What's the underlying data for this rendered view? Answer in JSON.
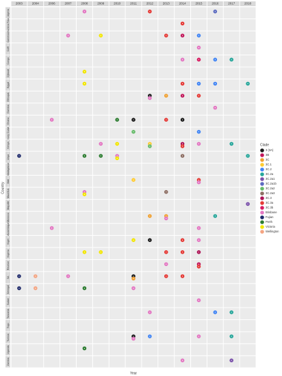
{
  "chart_data": {
    "type": "facet-dot",
    "x_label": "Year",
    "y_label": "Country",
    "legend_title": "Clade",
    "years": [
      "2003",
      "2004",
      "2006",
      "2007",
      "2008",
      "2009",
      "2010",
      "2011",
      "2012",
      "2013",
      "2014",
      "2015",
      "2016",
      "2017",
      "2018"
    ],
    "countries": [
      "Algeria",
      "Burkina Faso",
      "Cameroon",
      "CAR",
      "Congo",
      "Djibouti",
      "Egypt",
      "Ethiopia",
      "Gambia",
      "Ghana",
      "Ivory Coast",
      "Kenya",
      "Libya",
      "Madagascar",
      "Mali",
      "Mauritius",
      "Mayotte",
      "Morocco",
      "Mozambique",
      "Niger",
      "Nigeria",
      "Reunion",
      "SA",
      "Senegal",
      "Sudan",
      "Tanzania",
      "Togo",
      "Tunisia",
      "Uganda",
      "Zambia"
    ],
    "series": [
      {
        "name": "3 (3A)",
        "color": "#1a1a1a",
        "x": [
          "2011",
          "2012",
          "2011",
          "2012",
          "2011",
          "2014"
        ],
        "values": [
          "Ghana",
          "Ethiopia",
          "SA",
          "Niger",
          "Tunisia",
          "Ghana"
        ]
      },
      {
        "name": "3B",
        "color": "#c2185b",
        "x": [
          "2014",
          "2015",
          "2014"
        ],
        "values": [
          "Cameroon",
          "Reunion",
          "Ethiopia"
        ]
      },
      {
        "name": "3C",
        "color": "#f0a030",
        "x": [
          "2013",
          "2012",
          "2013",
          "2011"
        ],
        "values": [
          "Ethiopia",
          "Morocco",
          "Morocco",
          "SA"
        ]
      },
      {
        "name": "3C.1",
        "color": "#ffcc33",
        "x": [
          "2012",
          "2011"
        ],
        "values": [
          "Kenya",
          "Mali"
        ]
      },
      {
        "name": "3C.2",
        "color": "#4285f4",
        "x": [
          "2015",
          "2016",
          "2016",
          "2015",
          "2016",
          "2015",
          "2012"
        ],
        "values": [
          "Egypt",
          "Egypt",
          "Congo",
          "Cameroon",
          "Tanzania",
          "Ivory Coast",
          "Tunisia"
        ]
      },
      {
        "name": "3C.2a",
        "color": "#26a69a",
        "x": [
          "2017",
          "2017",
          "2018",
          "2018",
          "2016",
          "2017",
          "2017"
        ],
        "values": [
          "Congo",
          "Kenya",
          "Egypt",
          "Libya",
          "Morocco",
          "Tanzania",
          "Tunisia"
        ]
      },
      {
        "name": "3C.2a1",
        "color": "#7b52ab",
        "x": [
          "2017",
          "2018"
        ],
        "values": [
          "Zambia",
          "Mayotte"
        ]
      },
      {
        "name": "3C.2a1b",
        "color": "#5c6bc0",
        "x": [
          "2016"
        ],
        "values": [
          "Algeria"
        ]
      },
      {
        "name": "3C.2a2",
        "color": "#66bb6a",
        "x": [
          "2012",
          "2011"
        ],
        "values": [
          "Kenya",
          "Ivory Coast"
        ]
      },
      {
        "name": "3C.2a3",
        "color": "#8d6e63",
        "x": [
          "2014",
          "2013"
        ],
        "values": [
          "Libya",
          "Mauritius"
        ]
      },
      {
        "name": "3C.3",
        "color": "#ad1457",
        "x": [
          "2014",
          "2015"
        ],
        "values": [
          "Kenya",
          "Nigeria"
        ]
      },
      {
        "name": "3C.3a",
        "color": "#e53935",
        "x": [
          "2012",
          "2014",
          "2013",
          "2014",
          "2015",
          "2013",
          "2014",
          "2015",
          "2014",
          "2013",
          "2014",
          "2015",
          "2014",
          "2013"
        ],
        "values": [
          "Algeria",
          "Burkina Faso",
          "Cameroon",
          "Egypt",
          "Ethiopia",
          "Ghana",
          "Kenya",
          "Mali",
          "Niger",
          "Nigeria",
          "Nigeria",
          "Reunion",
          "SA",
          "SA"
        ]
      },
      {
        "name": "3C.3b",
        "color": "#d81b60",
        "x": [
          "2015"
        ],
        "values": [
          "Congo"
        ]
      },
      {
        "name": "Brisbane",
        "color": "#e377c2",
        "x": [
          "2008",
          "2007",
          "2015",
          "2006",
          "2015",
          "2008",
          "2012",
          "2006",
          "2015",
          "2015",
          "2009",
          "2013",
          "2007",
          "2011",
          "2015",
          "2012",
          "2014",
          "2016",
          "2015",
          "2010",
          "2014",
          "2013",
          "2015",
          "2011"
        ],
        "values": [
          "Algeria",
          "Cameroon",
          "CAR",
          "Ghana",
          "Kenya",
          "Mauritius",
          "Ethiopia",
          "Mozambique",
          "Mozambique",
          "Niger",
          "Kenya",
          "Reunion",
          "SA",
          "Senegal",
          "Sudan",
          "Tanzania",
          "Zambia",
          "Gambia",
          "Mali",
          "Libya",
          "Congo",
          "Morocco",
          "Tunisia",
          "Tunisia"
        ]
      },
      {
        "name": "Fujian",
        "color": "#1f2a6b",
        "x": [
          "2003",
          "2003",
          "2003"
        ],
        "values": [
          "Libya",
          "SA",
          "Senegal"
        ]
      },
      {
        "name": "Perth",
        "color": "#2e7d32",
        "x": [
          "2008",
          "2010",
          "2008",
          "2008",
          "2009"
        ],
        "values": [
          "Libya",
          "Ghana",
          "Uganda",
          "Senegal",
          "Libya"
        ]
      },
      {
        "name": "Victoria",
        "color": "#f2e600",
        "x": [
          "2008",
          "2008",
          "2009",
          "2010",
          "2010",
          "2011",
          "2008",
          "2008",
          "2009"
        ],
        "values": [
          "Egypt",
          "Djibouti",
          "Cameroon",
          "Kenya",
          "Libya",
          "Niger",
          "Mauritius",
          "Nigeria",
          "Nigeria"
        ]
      },
      {
        "name": "Wellington",
        "color": "#f4a582",
        "x": [
          "2004",
          "2004"
        ],
        "values": [
          "SA",
          "Senegal"
        ]
      }
    ]
  }
}
